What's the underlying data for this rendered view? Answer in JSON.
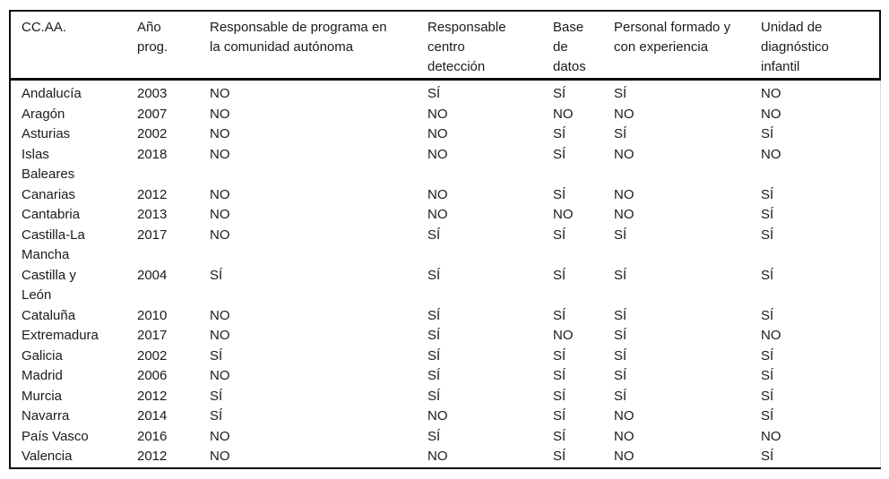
{
  "table": {
    "columns": [
      "CC.AA.",
      "Año\nprog.",
      "Responsable de programa en\nla comunidad autónoma",
      "Responsable\ncentro\ndetección",
      "Base\nde\ndatos",
      "Personal formado y\ncon experiencia",
      "Unidad de\ndiagnóstico\ninfantil"
    ],
    "rows": [
      [
        "Andalucía",
        "2003",
        "NO",
        "SÍ",
        "SÍ",
        "SÍ",
        "NO"
      ],
      [
        "Aragón",
        "2007",
        "NO",
        "NO",
        "NO",
        "NO",
        "NO"
      ],
      [
        "Asturias",
        "2002",
        "NO",
        "NO",
        "SÍ",
        "SÍ",
        "SÍ"
      ],
      [
        "Islas\nBaleares",
        "2018",
        "NO",
        "NO",
        "SÍ",
        "NO",
        "NO"
      ],
      [
        "Canarias",
        "2012",
        "NO",
        "NO",
        "SÍ",
        "NO",
        "SÍ"
      ],
      [
        "Cantabria",
        "2013",
        "NO",
        "NO",
        "NO",
        "NO",
        "SÍ"
      ],
      [
        "Castilla-La\nMancha",
        "2017",
        "NO",
        "SÍ",
        "SÍ",
        "SÍ",
        "SÍ"
      ],
      [
        "Castilla y\nLeón",
        "2004",
        "SÍ",
        "SÍ",
        "SÍ",
        "SÍ",
        "SÍ"
      ],
      [
        "Cataluña",
        "2010",
        "NO",
        "SÍ",
        "SÍ",
        "SÍ",
        "SÍ"
      ],
      [
        "Extremadura",
        "2017",
        "NO",
        "SÍ",
        "NO",
        "SÍ",
        "NO"
      ],
      [
        "Galicia",
        "2002",
        "SÍ",
        "SÍ",
        "SÍ",
        "SÍ",
        "SÍ"
      ],
      [
        "Madrid",
        "2006",
        "NO",
        "SÍ",
        "SÍ",
        "SÍ",
        "SÍ"
      ],
      [
        "Murcia",
        "2012",
        "SÍ",
        "SÍ",
        "SÍ",
        "SÍ",
        "SÍ"
      ],
      [
        "Navarra",
        "2014",
        "SÍ",
        "NO",
        "SÍ",
        "NO",
        "SÍ"
      ],
      [
        "País Vasco",
        "2016",
        "NO",
        "SÍ",
        "SÍ",
        "NO",
        "NO"
      ],
      [
        "Valencia",
        "2012",
        "NO",
        "NO",
        "SÍ",
        "NO",
        "SÍ"
      ]
    ]
  }
}
